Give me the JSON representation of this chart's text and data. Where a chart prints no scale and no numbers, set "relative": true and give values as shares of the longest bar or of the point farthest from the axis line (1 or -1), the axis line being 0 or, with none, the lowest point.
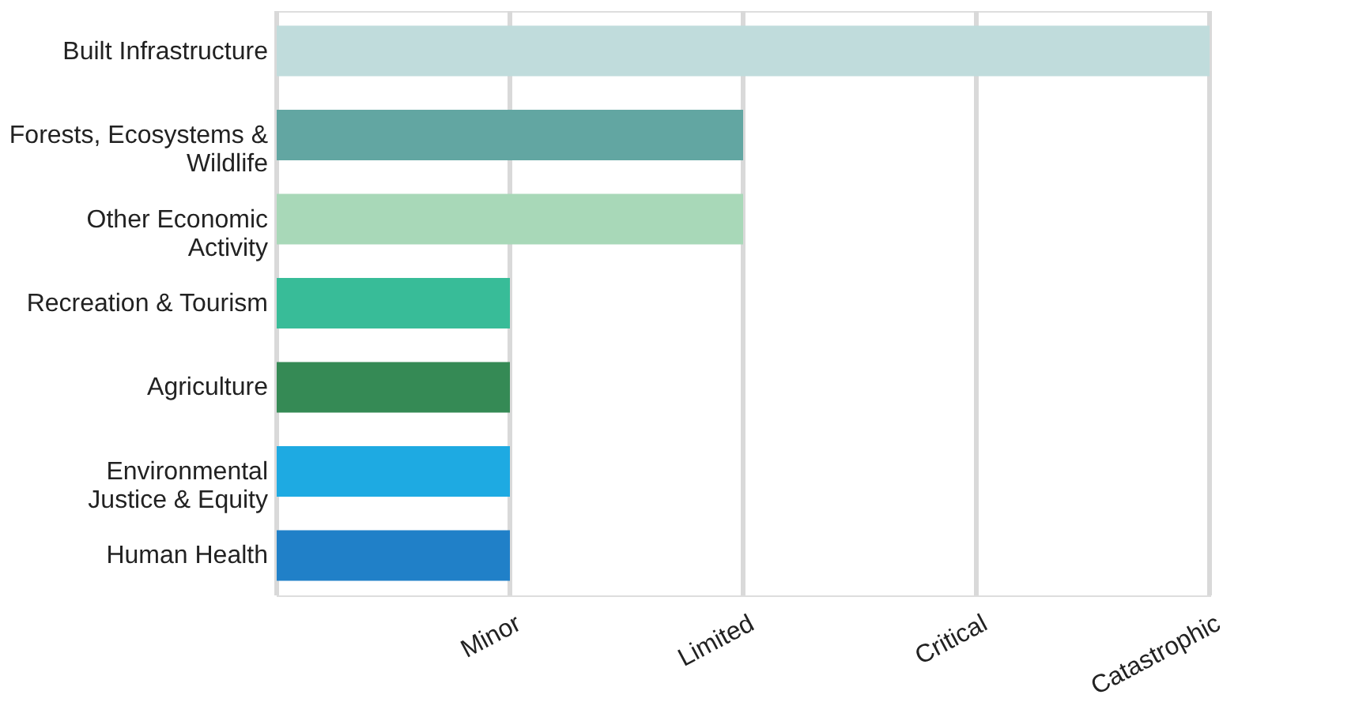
{
  "chart_data": {
    "type": "bar",
    "orientation": "horizontal",
    "relative": true,
    "categories": [
      "Built Infrastructure",
      "Forests, Ecosystems &\nWildlife",
      "Other Economic\nActivity",
      "Recreation & Tourism",
      "Agriculture",
      "Environmental\nJustice & Equity",
      "Human Health"
    ],
    "values": [
      1,
      0.5,
      0.5,
      0.25,
      0.25,
      0.25,
      0.25
    ],
    "colors": [
      "#c0dcdc",
      "#62a6a2",
      "#a8d8b8",
      "#38bc98",
      "#358a55",
      "#1eaae2",
      "#2080c8"
    ],
    "ref_lines": [
      {
        "axis": "x",
        "value": 0,
        "color": "#d9d9d9"
      },
      {
        "axis": "x",
        "value": 0.25,
        "label": "Minor",
        "color": "#d9d9d9"
      },
      {
        "axis": "x",
        "value": 0.5,
        "label": "Limited",
        "color": "#d9d9d9"
      },
      {
        "axis": "x",
        "value": 0.75,
        "label": "Critical",
        "color": "#d9d9d9"
      },
      {
        "axis": "x",
        "value": 1,
        "label": "Catastrophic",
        "color": "#d9d9d9"
      }
    ]
  }
}
